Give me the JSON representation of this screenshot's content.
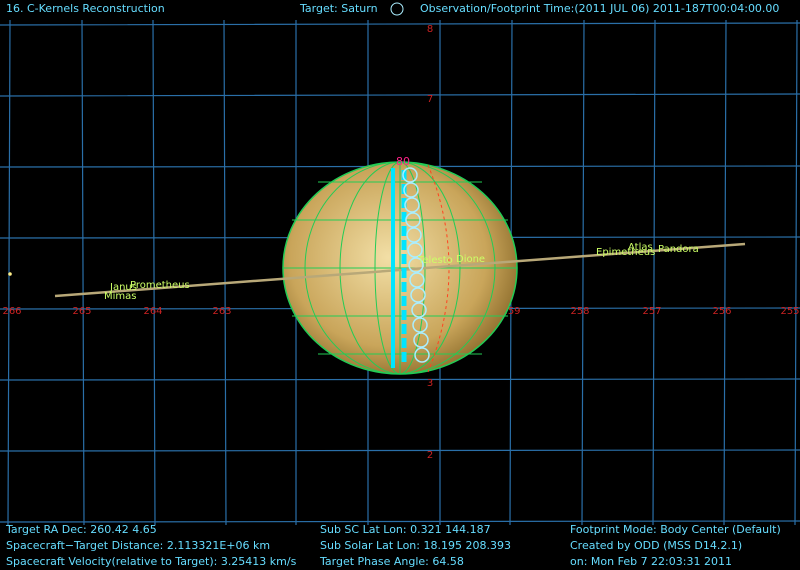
{
  "header": {
    "title": "16. C-Kernels Reconstruction",
    "target": "Target: Saturn",
    "time": "Observation/Footprint Time:(2011 JUL 06) 2011-187T00:04:00.00"
  },
  "grid": {
    "ra_labels": [
      "266",
      "265",
      "264",
      "263",
      "259",
      "258",
      "257",
      "256",
      "255"
    ],
    "dec_labels": [
      "8",
      "7",
      "3",
      "2"
    ]
  },
  "moons": [
    "Janus",
    "Prometheus",
    "Mimas",
    "Telesto",
    "Dione",
    "Epimetheus",
    "Pandora",
    "Atlas"
  ],
  "track_label": "80",
  "footer": {
    "left": [
      "Target RA Dec: 260.42   4.65",
      "Spacecraft−Target Distance: 2.113321E+06 km",
      "Spacecraft Velocity(relative to Target): 3.25413 km/s"
    ],
    "middle": [
      "Sub SC Lat Lon: 0.321  144.187",
      "Sub Solar Lat Lon: 18.195  208.393",
      "Target Phase Angle: 64.58"
    ],
    "right": [
      "Footprint Mode: Body Center (Default)",
      "Created by ODD (MSS D14.2.1)",
      "on: Mon Feb  7 22:03:31 2011"
    ]
  }
}
